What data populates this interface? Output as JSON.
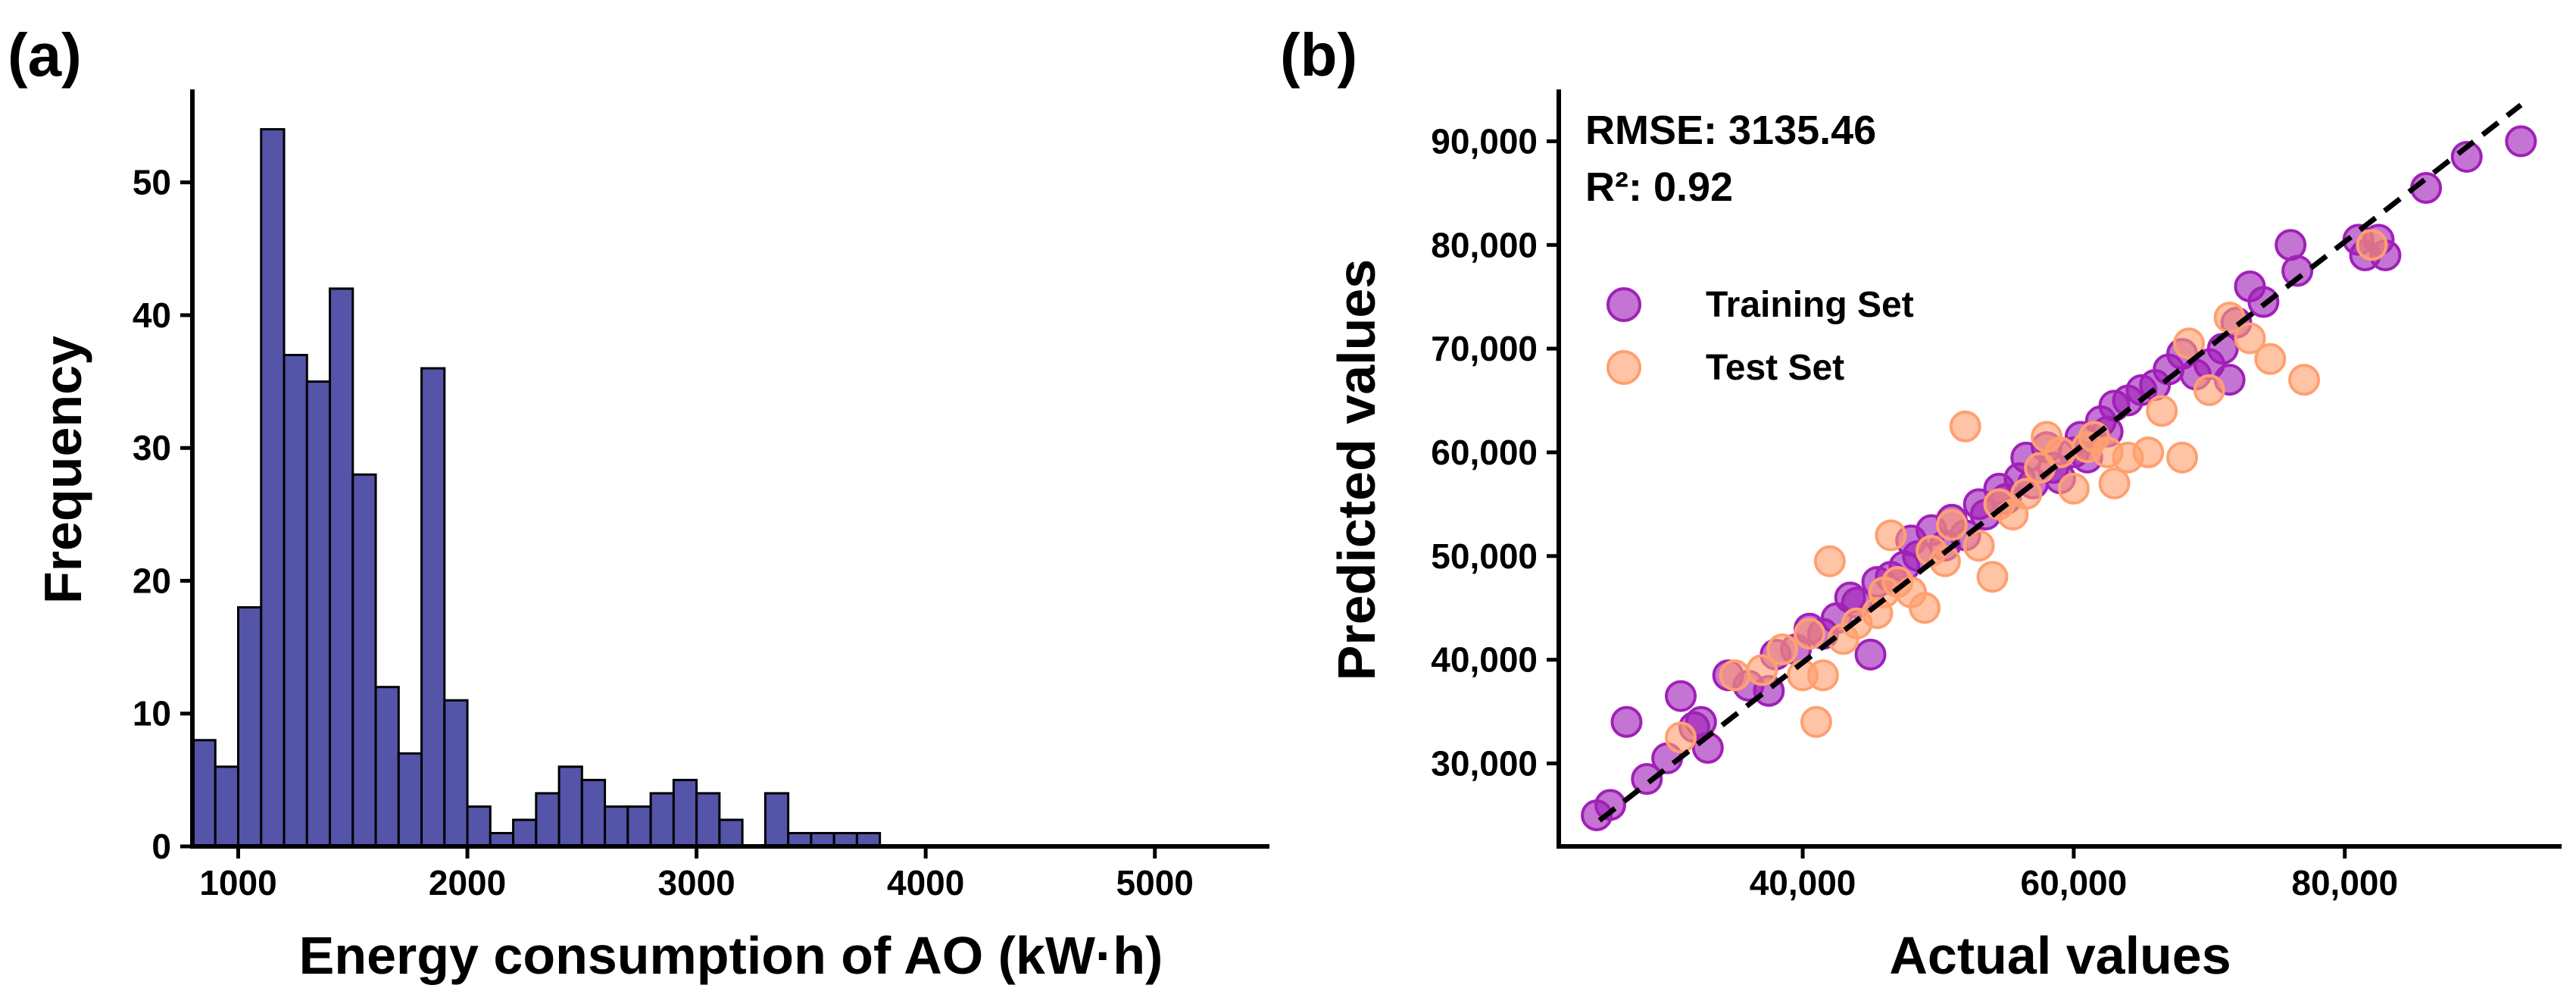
{
  "chart_data": [
    {
      "panel_label": "(a)",
      "type": "bar",
      "title": "",
      "xlabel": "Energy consumption of AO (kW·h)",
      "ylabel": "Frequency",
      "xlim": [
        800,
        5500
      ],
      "ylim": [
        0,
        57
      ],
      "bin_width": 100,
      "bin_starts": [
        800,
        900,
        1000,
        1100,
        1200,
        1300,
        1400,
        1500,
        1600,
        1700,
        1800,
        1900,
        2000,
        2100,
        2200,
        2300,
        2400,
        2500,
        2600,
        2700,
        2800,
        2900,
        3000,
        3100,
        3200,
        3300,
        3400,
        3500,
        3600,
        3700,
        3800,
        3900,
        4000,
        4100,
        4200,
        4300,
        4400,
        4500,
        4600,
        4700,
        4800,
        4900
      ],
      "values": [
        8,
        6,
        18,
        54,
        37,
        35,
        42,
        28,
        12,
        7,
        36,
        11,
        3,
        1,
        2,
        4,
        6,
        5,
        3,
        3,
        4,
        5,
        4,
        2,
        0,
        4,
        1,
        1,
        1,
        1,
        0,
        0,
        0,
        0,
        0,
        0,
        0,
        0,
        0,
        0,
        0,
        0
      ],
      "x_ticks": [
        1000,
        2000,
        3000,
        4000,
        5000
      ],
      "x_tick_labels": [
        "1000",
        "2000",
        "3000",
        "4000",
        "5000"
      ],
      "y_ticks": [
        0,
        10,
        20,
        30,
        40,
        50
      ],
      "y_tick_labels": [
        "0",
        "10",
        "20",
        "30",
        "40",
        "50"
      ],
      "bar_color": "#5454A8",
      "grid": false
    },
    {
      "panel_label": "(b)",
      "type": "scatter",
      "title": "",
      "xlabel": "Actual values",
      "ylabel": "Predicted values",
      "xlim": [
        22000,
        96000
      ],
      "ylim": [
        22000,
        95000
      ],
      "x_ticks": [
        40000,
        60000,
        80000
      ],
      "x_tick_labels": [
        "40,000",
        "60,000",
        "80,000"
      ],
      "y_ticks": [
        30000,
        40000,
        50000,
        60000,
        70000,
        80000,
        90000
      ],
      "y_tick_labels": [
        "30,000",
        "40,000",
        "50,000",
        "60,000",
        "70,000",
        "80,000",
        "90,000"
      ],
      "annotations": [
        "RMSE: 3135.46",
        "R²: 0.92"
      ],
      "legend_position": "upper-left",
      "grid": false,
      "reference_line": {
        "style": "dashed",
        "color": "#000000",
        "points": [
          [
            25000,
            24500
          ],
          [
            93000,
            93500
          ]
        ]
      },
      "series": [
        {
          "name": "Training Set",
          "color": "#A020B8",
          "points": [
            [
              24800,
              25000
            ],
            [
              25800,
              26000
            ],
            [
              27000,
              34000
            ],
            [
              28500,
              28500
            ],
            [
              30000,
              30500
            ],
            [
              31000,
              36500
            ],
            [
              32000,
              33500
            ],
            [
              32500,
              34000
            ],
            [
              33000,
              31500
            ],
            [
              34500,
              38500
            ],
            [
              36000,
              37500
            ],
            [
              37500,
              37000
            ],
            [
              38000,
              40500
            ],
            [
              39500,
              41000
            ],
            [
              40500,
              43000
            ],
            [
              41500,
              42500
            ],
            [
              42500,
              44000
            ],
            [
              43500,
              46000
            ],
            [
              44000,
              45500
            ],
            [
              45000,
              40500
            ],
            [
              45500,
              47500
            ],
            [
              46500,
              48000
            ],
            [
              47500,
              49000
            ],
            [
              48000,
              51500
            ],
            [
              48500,
              50000
            ],
            [
              49500,
              52500
            ],
            [
              50500,
              51000
            ],
            [
              51000,
              53500
            ],
            [
              52000,
              52000
            ],
            [
              53000,
              55000
            ],
            [
              53500,
              54000
            ],
            [
              54500,
              56500
            ],
            [
              55000,
              55500
            ],
            [
              56000,
              57500
            ],
            [
              56500,
              59500
            ],
            [
              57000,
              57000
            ],
            [
              58000,
              60500
            ],
            [
              58500,
              58500
            ],
            [
              59000,
              57500
            ],
            [
              60000,
              60000
            ],
            [
              60500,
              61500
            ],
            [
              61000,
              59500
            ],
            [
              62000,
              63000
            ],
            [
              62500,
              62000
            ],
            [
              63000,
              64500
            ],
            [
              64000,
              65000
            ],
            [
              65000,
              66000
            ],
            [
              66000,
              66500
            ],
            [
              67000,
              68000
            ],
            [
              68000,
              69500
            ],
            [
              69000,
              67500
            ],
            [
              70000,
              68500
            ],
            [
              71000,
              70000
            ],
            [
              71500,
              67000
            ],
            [
              72000,
              72500
            ],
            [
              73000,
              76000
            ],
            [
              74000,
              74500
            ],
            [
              76000,
              80000
            ],
            [
              76500,
              77500
            ],
            [
              81000,
              80500
            ],
            [
              81500,
              79000
            ],
            [
              82500,
              80500
            ],
            [
              83000,
              79000
            ],
            [
              86000,
              85500
            ],
            [
              89000,
              88500
            ],
            [
              93000,
              90000
            ]
          ]
        },
        {
          "name": "Test Set",
          "color": "#FFA070",
          "points": [
            [
              31000,
              32500
            ],
            [
              35000,
              38500
            ],
            [
              37000,
              39000
            ],
            [
              38500,
              41000
            ],
            [
              40000,
              38500
            ],
            [
              40500,
              42500
            ],
            [
              41000,
              34000
            ],
            [
              41500,
              38500
            ],
            [
              42000,
              49500
            ],
            [
              43000,
              42000
            ],
            [
              44000,
              43500
            ],
            [
              45500,
              44500
            ],
            [
              46000,
              46500
            ],
            [
              46500,
              52000
            ],
            [
              47000,
              47500
            ],
            [
              48000,
              46500
            ],
            [
              49000,
              45000
            ],
            [
              49500,
              50500
            ],
            [
              50500,
              49500
            ],
            [
              51000,
              53000
            ],
            [
              52000,
              62500
            ],
            [
              53000,
              51000
            ],
            [
              54000,
              48000
            ],
            [
              54500,
              55000
            ],
            [
              55500,
              54000
            ],
            [
              56500,
              56000
            ],
            [
              57500,
              58500
            ],
            [
              58000,
              61500
            ],
            [
              59000,
              60000
            ],
            [
              60000,
              56500
            ],
            [
              61000,
              60500
            ],
            [
              61500,
              61500
            ],
            [
              62500,
              60000
            ],
            [
              63000,
              57000
            ],
            [
              64000,
              59500
            ],
            [
              65500,
              60000
            ],
            [
              66500,
              64000
            ],
            [
              68000,
              59500
            ],
            [
              68500,
              70500
            ],
            [
              70000,
              66000
            ],
            [
              71500,
              73000
            ],
            [
              73000,
              71000
            ],
            [
              74500,
              69000
            ],
            [
              77000,
              67000
            ],
            [
              82000,
              80000
            ]
          ]
        }
      ]
    }
  ]
}
